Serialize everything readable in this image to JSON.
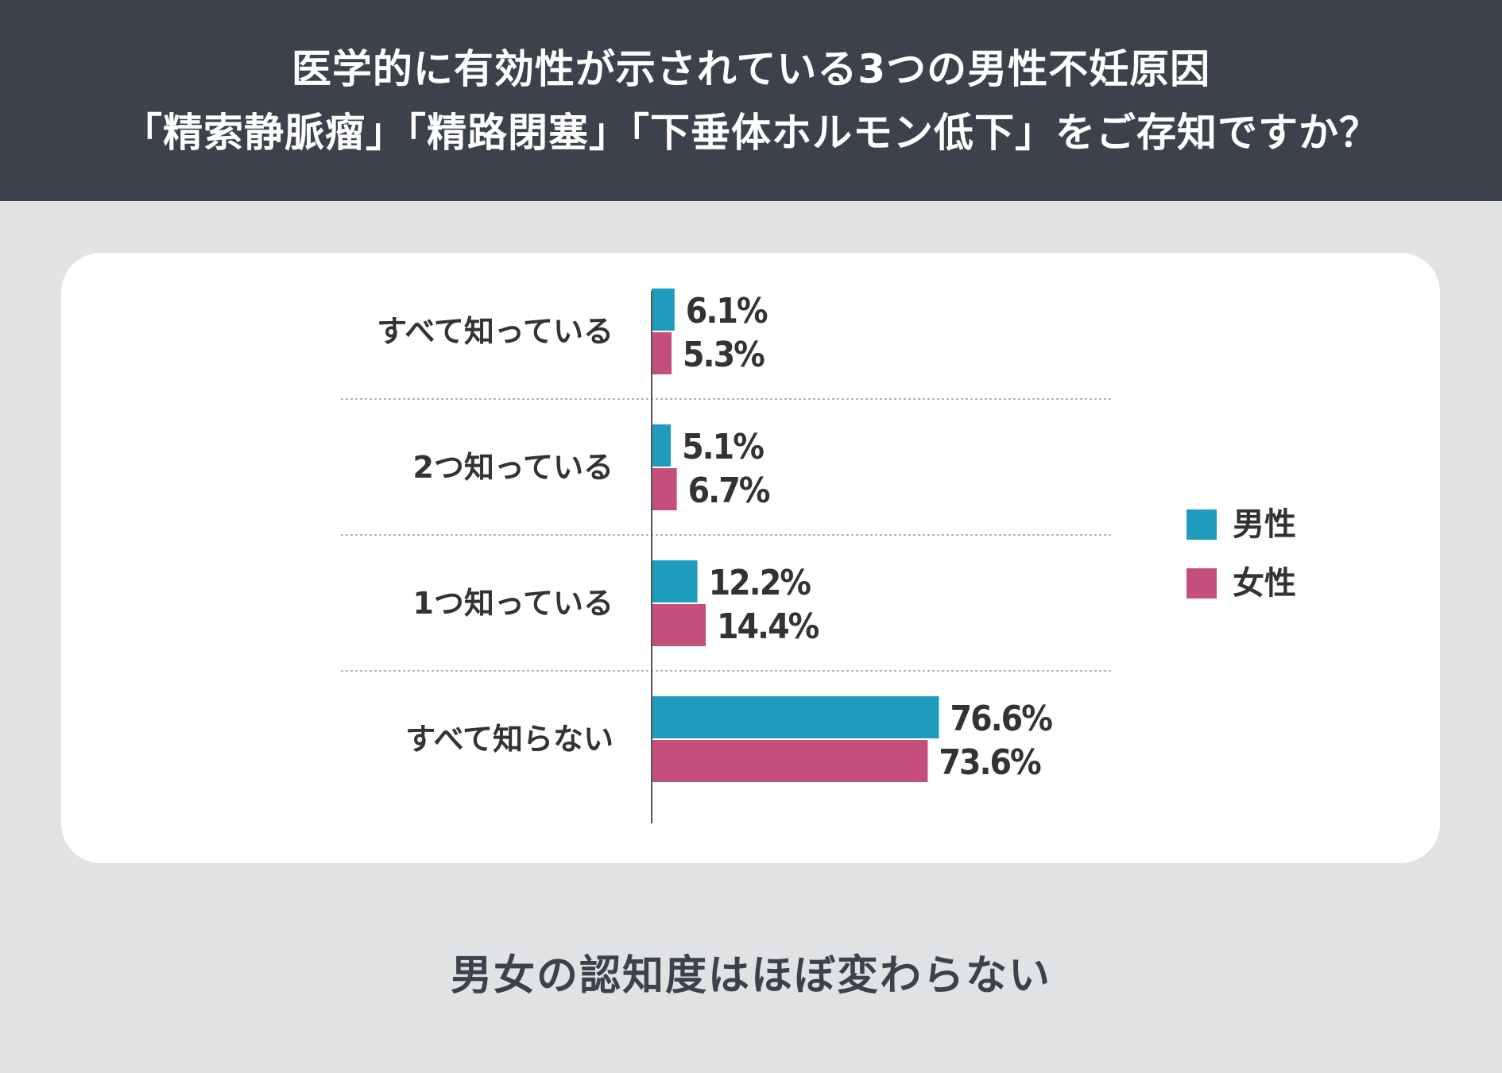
{
  "header": {
    "title_line1": "医学的に有効性が示されている3つの男性不妊原因",
    "title_line2": "「精索静脈瘤」「精路閉塞」「下垂体ホルモン低下」をご存知ですか？"
  },
  "footer": {
    "note": "男女の認知度はほぼ変わらない"
  },
  "colors": {
    "header_bg": "#3b424b",
    "page_bg": "#e1e2e4",
    "male": "#1f9bbd",
    "female": "#c44f7a",
    "text": "#333333"
  },
  "chart_data": {
    "type": "bar",
    "orientation": "horizontal",
    "categories": [
      "すべて知っている",
      "2つ知っている",
      "1つ知っている",
      "すべて知らない"
    ],
    "series": [
      {
        "name": "男性",
        "values": [
          6.1,
          5.1,
          12.2,
          76.6
        ],
        "labels": [
          "6.1%",
          "5.1%",
          "12.2%",
          "76.6%"
        ]
      },
      {
        "name": "女性",
        "values": [
          5.3,
          6.7,
          14.4,
          73.6
        ],
        "labels": [
          "5.3%",
          "6.7%",
          "14.4%",
          "73.6%"
        ]
      }
    ],
    "unit": "%",
    "xlim": [
      0,
      100
    ],
    "legend_position": "right",
    "grid": false
  }
}
